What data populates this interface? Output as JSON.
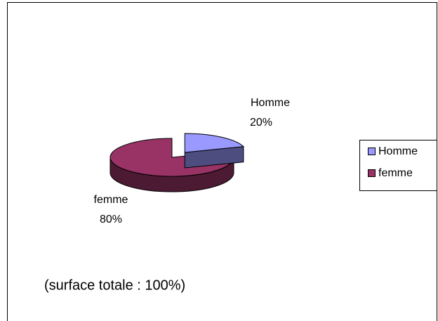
{
  "chart_data": {
    "type": "pie3d",
    "categories": [
      "Homme",
      "femme"
    ],
    "values": [
      20,
      80
    ],
    "value_labels": [
      "20%",
      "80%"
    ],
    "colors": [
      "#9999ff",
      "#993366"
    ],
    "legend": "right",
    "annotation": "(surface totale : 100%)"
  }
}
